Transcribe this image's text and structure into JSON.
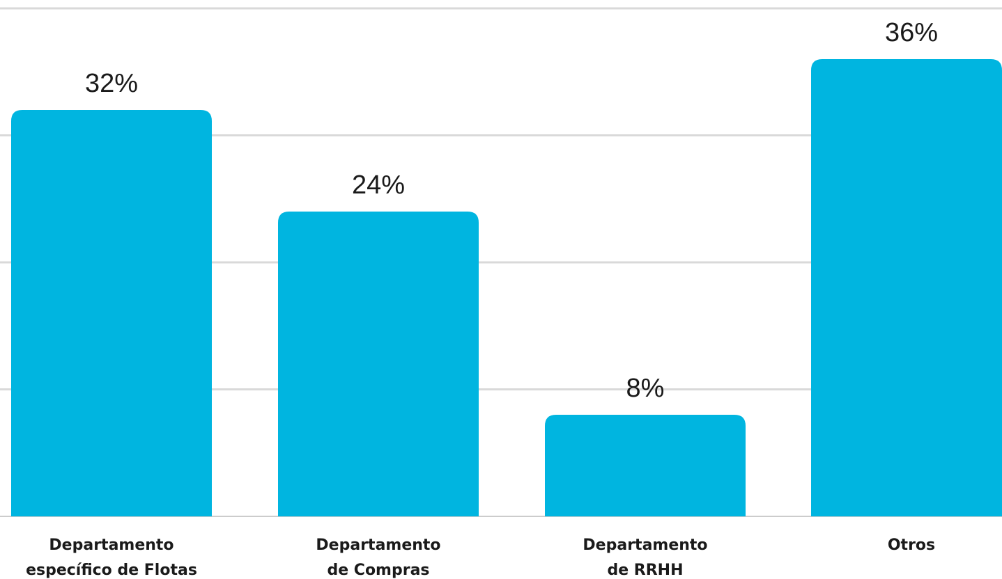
{
  "chart_data": {
    "type": "bar",
    "categories": [
      [
        "Departamento",
        "específico de Flotas"
      ],
      [
        "Departamento",
        "de Compras"
      ],
      [
        "Departamento",
        "de RRHH"
      ],
      [
        "Otros"
      ]
    ],
    "values": [
      32,
      24,
      8,
      36
    ],
    "value_labels": [
      "32%",
      "24%",
      "8%",
      "36%"
    ],
    "ylim": [
      0,
      40
    ],
    "gridlines": [
      10,
      20,
      30,
      40
    ],
    "grid": true,
    "colors": {
      "bar": "#00B5E0",
      "grid": "#d9d9d9",
      "baseline": "#cccccc",
      "text": "#1a1a1a"
    }
  }
}
